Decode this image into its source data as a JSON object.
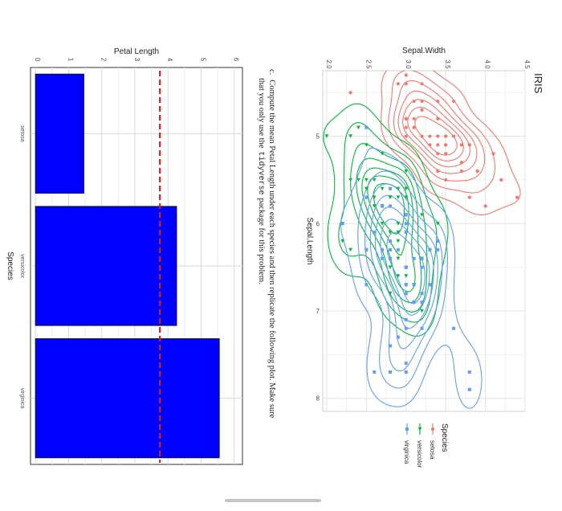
{
  "scatter_chart": {
    "title": "IRIS",
    "xlabel": "Sepal.Length",
    "ylabel": "Sepal.Width",
    "x_ticks": [
      "5",
      "6",
      "7",
      "8"
    ],
    "y_ticks": [
      "2.0",
      "2.5",
      "3.0",
      "3.5",
      "4.0",
      "4.5"
    ],
    "legend_title": "Species",
    "legend_items": [
      "setosa",
      "versicolor",
      "virginica"
    ]
  },
  "problem": {
    "label": "c.",
    "line1": "Compute the mean Petal Length under each species and then replicate the following plot. Make sure",
    "line2_before": "that you only use the",
    "line2_code": "tidyverse",
    "line2_after": "package for this problem."
  },
  "bar_chart": {
    "ylabel": "Petal Length",
    "xlabel": "Species",
    "y_ticks": [
      "0",
      "1",
      "2",
      "3",
      "4",
      "5",
      "6"
    ]
  },
  "colors": {
    "setosa": "#f8766d",
    "versicolor": "#00ba38",
    "virginica": "#619cff",
    "bar_fill": "#0000ff",
    "mean_line": "#cc2222"
  },
  "chart_data": [
    {
      "type": "scatter",
      "title": "IRIS",
      "xlabel": "Sepal.Length",
      "ylabel": "Sepal.Width",
      "xlim": [
        4.25,
        8.15
      ],
      "ylim": [
        1.95,
        4.5
      ],
      "grid": true,
      "legend_placement": "right",
      "series": [
        {
          "name": "setosa",
          "shape": "circle",
          "points": [
            [
              5.1,
              3.5
            ],
            [
              4.9,
              3.0
            ],
            [
              4.7,
              3.2
            ],
            [
              4.6,
              3.1
            ],
            [
              5.0,
              3.6
            ],
            [
              5.4,
              3.9
            ],
            [
              4.6,
              3.4
            ],
            [
              5.0,
              3.4
            ],
            [
              4.4,
              2.9
            ],
            [
              4.9,
              3.1
            ],
            [
              5.4,
              3.7
            ],
            [
              4.8,
              3.4
            ],
            [
              4.8,
              3.0
            ],
            [
              4.3,
              3.0
            ],
            [
              5.8,
              4.0
            ],
            [
              5.7,
              4.4
            ],
            [
              5.4,
              3.9
            ],
            [
              5.1,
              3.5
            ],
            [
              5.7,
              3.8
            ],
            [
              5.1,
              3.8
            ],
            [
              5.4,
              3.4
            ],
            [
              5.1,
              3.7
            ],
            [
              4.6,
              3.6
            ],
            [
              5.1,
              3.3
            ],
            [
              4.8,
              3.4
            ],
            [
              5.0,
              3.0
            ],
            [
              5.0,
              3.4
            ],
            [
              5.2,
              3.5
            ],
            [
              5.2,
              3.4
            ],
            [
              4.7,
              3.2
            ],
            [
              4.8,
              3.1
            ],
            [
              5.4,
              3.4
            ],
            [
              5.2,
              4.1
            ],
            [
              5.5,
              4.2
            ],
            [
              4.9,
              3.1
            ],
            [
              5.0,
              3.2
            ],
            [
              5.5,
              3.5
            ],
            [
              4.4,
              3.0
            ],
            [
              5.1,
              3.4
            ],
            [
              5.0,
              3.5
            ],
            [
              4.5,
              2.3
            ],
            [
              4.4,
              3.2
            ],
            [
              5.0,
              3.5
            ],
            [
              5.1,
              3.8
            ],
            [
              4.8,
              3.0
            ],
            [
              5.1,
              3.8
            ],
            [
              4.6,
              3.2
            ],
            [
              5.3,
              3.7
            ],
            [
              5.0,
              3.3
            ]
          ]
        },
        {
          "name": "versicolor",
          "shape": "triangle",
          "points": [
            [
              7.0,
              3.2
            ],
            [
              6.4,
              3.2
            ],
            [
              6.9,
              3.1
            ],
            [
              5.5,
              2.3
            ],
            [
              6.5,
              2.8
            ],
            [
              5.7,
              2.8
            ],
            [
              6.3,
              3.3
            ],
            [
              4.9,
              2.4
            ],
            [
              6.6,
              2.9
            ],
            [
              5.2,
              2.7
            ],
            [
              5.0,
              2.0
            ],
            [
              5.9,
              3.0
            ],
            [
              6.0,
              2.2
            ],
            [
              6.1,
              2.9
            ],
            [
              5.6,
              2.9
            ],
            [
              6.7,
              3.1
            ],
            [
              5.6,
              3.0
            ],
            [
              5.8,
              2.7
            ],
            [
              6.2,
              2.2
            ],
            [
              5.6,
              2.5
            ],
            [
              5.9,
              3.2
            ],
            [
              6.1,
              2.8
            ],
            [
              6.3,
              2.5
            ],
            [
              6.4,
              2.9
            ],
            [
              6.6,
              3.0
            ],
            [
              6.8,
              2.8
            ],
            [
              6.7,
              3.0
            ],
            [
              6.0,
              2.9
            ],
            [
              5.7,
              2.6
            ],
            [
              5.5,
              2.4
            ],
            [
              5.8,
              2.7
            ],
            [
              6.0,
              2.7
            ],
            [
              5.4,
              3.0
            ],
            [
              6.0,
              3.4
            ],
            [
              6.7,
              3.1
            ],
            [
              6.3,
              2.3
            ],
            [
              5.5,
              2.5
            ],
            [
              5.5,
              2.6
            ],
            [
              6.1,
              3.0
            ],
            [
              5.8,
              2.6
            ],
            [
              5.0,
              2.3
            ],
            [
              5.6,
              2.7
            ],
            [
              5.7,
              3.0
            ],
            [
              5.7,
              2.9
            ],
            [
              6.2,
              2.9
            ],
            [
              5.1,
              2.5
            ],
            [
              5.7,
              2.8
            ]
          ]
        },
        {
          "name": "virginica",
          "shape": "square",
          "points": [
            [
              6.3,
              3.3
            ],
            [
              5.8,
              2.7
            ],
            [
              7.1,
              3.0
            ],
            [
              6.3,
              2.9
            ],
            [
              6.5,
              3.0
            ],
            [
              7.6,
              3.0
            ],
            [
              4.9,
              2.5
            ],
            [
              7.3,
              2.9
            ],
            [
              6.7,
              2.5
            ],
            [
              7.2,
              3.6
            ],
            [
              6.5,
              3.2
            ],
            [
              6.4,
              2.7
            ],
            [
              6.8,
              3.0
            ],
            [
              5.7,
              2.5
            ],
            [
              5.8,
              2.8
            ],
            [
              6.4,
              3.2
            ],
            [
              6.5,
              3.0
            ],
            [
              7.7,
              3.8
            ],
            [
              7.7,
              2.6
            ],
            [
              6.0,
              2.2
            ],
            [
              6.9,
              3.2
            ],
            [
              5.6,
              2.8
            ],
            [
              7.7,
              2.8
            ],
            [
              6.3,
              2.7
            ],
            [
              6.7,
              3.3
            ],
            [
              7.2,
              3.2
            ],
            [
              6.2,
              2.8
            ],
            [
              6.1,
              3.0
            ],
            [
              6.4,
              2.8
            ],
            [
              7.2,
              3.0
            ],
            [
              7.4,
              2.8
            ],
            [
              7.9,
              3.8
            ],
            [
              6.4,
              2.8
            ],
            [
              6.3,
              2.8
            ],
            [
              6.1,
              2.6
            ],
            [
              7.7,
              3.0
            ],
            [
              6.3,
              3.4
            ],
            [
              6.4,
              3.1
            ],
            [
              6.0,
              3.0
            ],
            [
              6.9,
              3.1
            ],
            [
              6.7,
              3.1
            ],
            [
              5.8,
              2.7
            ],
            [
              6.8,
              3.2
            ],
            [
              6.7,
              3.3
            ],
            [
              6.7,
              3.0
            ],
            [
              6.3,
              2.5
            ],
            [
              6.5,
              3.0
            ],
            [
              6.2,
              3.4
            ],
            [
              5.9,
              3.0
            ]
          ]
        }
      ]
    },
    {
      "type": "bar",
      "xlabel": "Species",
      "ylabel": "Petal Length",
      "categories": [
        "setosa",
        "versicolor",
        "virginica"
      ],
      "values": [
        1.46,
        4.26,
        5.55
      ],
      "ylim": [
        -0.15,
        6.25
      ],
      "reference_line": {
        "value": 3.758,
        "style": "dashed"
      },
      "grid": true
    }
  ]
}
